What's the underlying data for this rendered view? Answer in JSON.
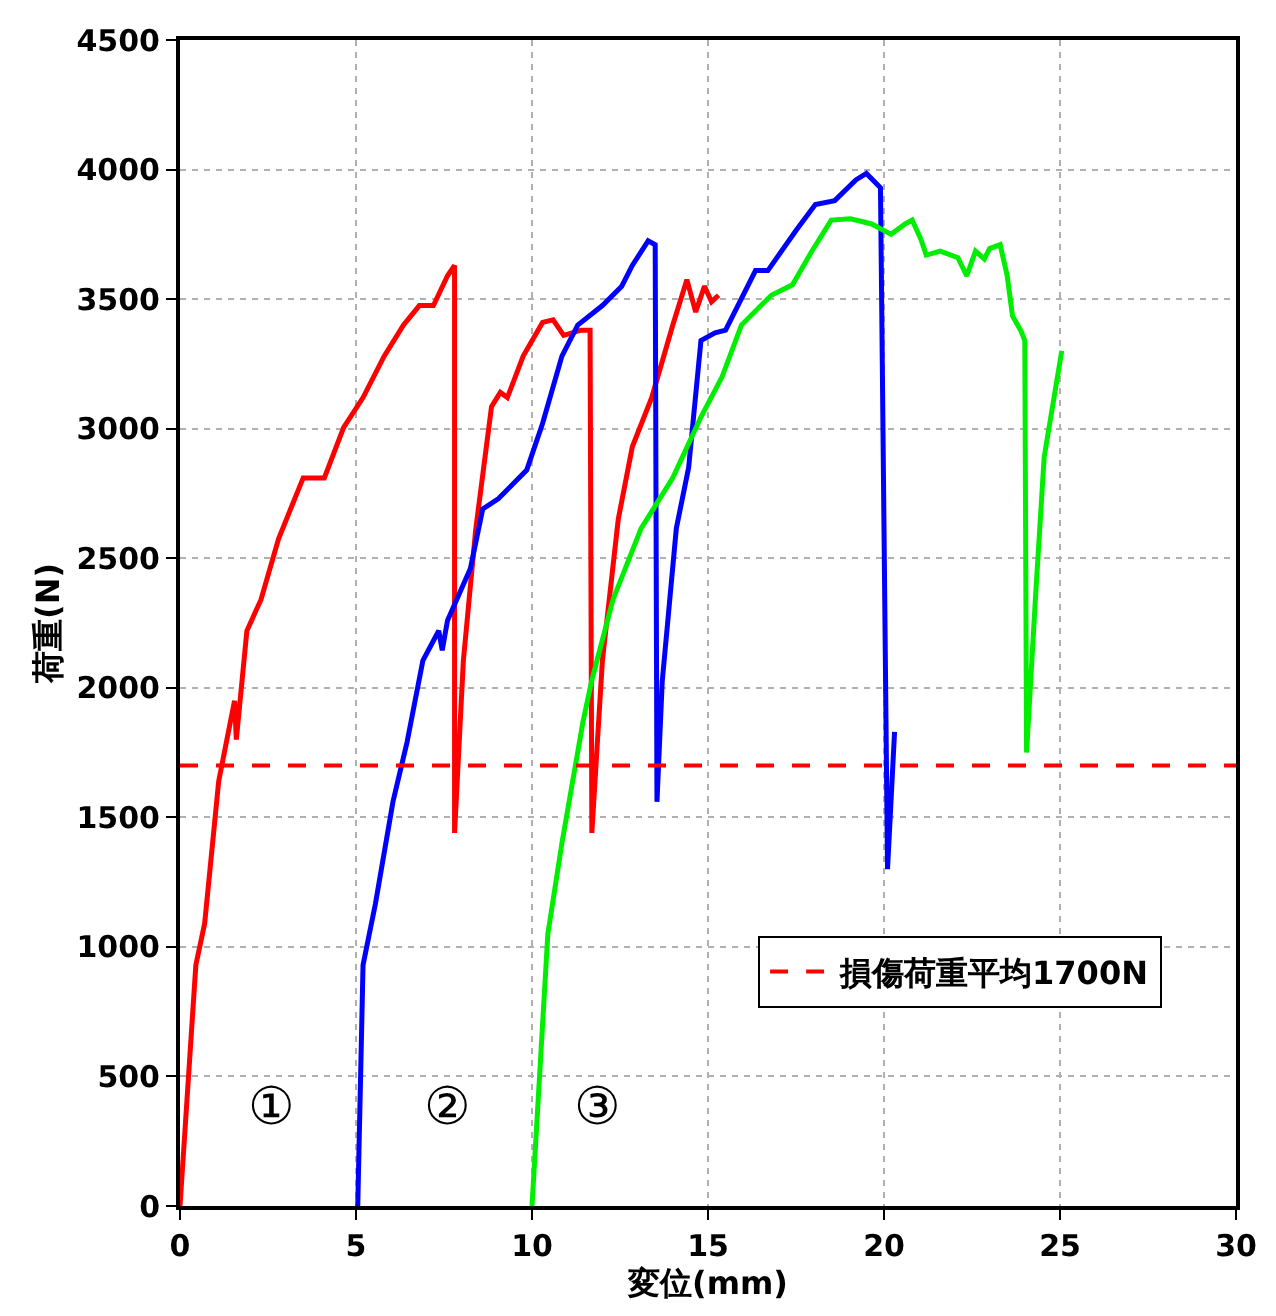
{
  "chart_data": {
    "type": "line",
    "xlabel": "変位(mm)",
    "ylabel": "荷重(N)",
    "xlim": [
      0,
      30
    ],
    "xticks": [
      0,
      5,
      10,
      15,
      20,
      25,
      30
    ],
    "ylim": [
      0,
      4500
    ],
    "yticks": [
      0,
      500,
      1000,
      1500,
      2000,
      2500,
      3000,
      3500,
      4000,
      4500
    ],
    "grid": true,
    "legend": "bottom right",
    "marker": "none",
    "line_style": "solid",
    "series": [
      {
        "color": "#ff0000",
        "x": [
          0,
          0.45,
          0.7,
          1.1,
          1.55,
          1.6,
          1.9,
          2.3,
          2.8,
          3.5,
          4.1,
          4.65,
          5.2,
          5.8,
          6.35,
          6.8,
          7.2,
          7.6,
          7.8,
          7.8,
          8.05,
          8.4,
          8.85,
          9.1,
          9.3,
          9.75,
          10.3,
          10.6,
          10.9,
          11.4,
          11.65,
          11.7,
          12.0,
          12.45,
          12.85,
          13.4,
          14.0,
          14.4,
          14.65,
          14.9,
          15.1,
          15.3
        ],
        "values": [
          0,
          930,
          1090,
          1640,
          1950,
          1800,
          2220,
          2340,
          2575,
          2810,
          2810,
          3005,
          3120,
          3280,
          3400,
          3475,
          3475,
          3590,
          3630,
          1440,
          2105,
          2610,
          3085,
          3140,
          3120,
          3280,
          3410,
          3420,
          3360,
          3380,
          3380,
          1440,
          2105,
          2650,
          2930,
          3120,
          3400,
          3575,
          3450,
          3550,
          3490,
          3515
        ]
      },
      {
        "color": "#0000ff",
        "x": [
          5.05,
          5.2,
          5.55,
          6.05,
          6.45,
          6.9,
          7.35,
          7.45,
          7.6,
          8.25,
          8.6,
          9.05,
          9.85,
          10.3,
          10.85,
          11.3,
          12.0,
          12.55,
          12.85,
          13.3,
          13.5,
          13.55,
          13.7,
          14.1,
          14.45,
          14.8,
          15.2,
          15.5,
          16.35,
          16.7,
          17.5,
          18.05,
          18.6,
          19.2,
          19.5,
          19.9,
          20.1,
          20.3
        ],
        "values": [
          0,
          930,
          1165,
          1560,
          1790,
          2105,
          2220,
          2145,
          2260,
          2460,
          2690,
          2730,
          2840,
          3020,
          3280,
          3400,
          3475,
          3550,
          3630,
          3725,
          3710,
          1560,
          2025,
          2615,
          2850,
          3340,
          3370,
          3380,
          3610,
          3610,
          3765,
          3865,
          3880,
          3960,
          3985,
          3930,
          1300,
          1830
        ]
      },
      {
        "color": "#00ee00",
        "x": [
          10.0,
          10.45,
          10.85,
          11.45,
          11.7,
          12.3,
          13.1,
          14.0,
          14.8,
          15.4,
          15.95,
          16.8,
          17.4,
          17.95,
          18.5,
          19.05,
          19.65,
          20.2,
          20.6,
          20.8,
          21.05,
          21.2,
          21.6,
          22.1,
          22.35,
          22.6,
          22.85,
          23.0,
          23.3,
          23.5,
          23.65,
          23.9,
          24.0,
          24.05,
          24.3,
          24.55,
          25.05
        ],
        "values": [
          0,
          1050,
          1400,
          1870,
          2030,
          2340,
          2615,
          2810,
          3045,
          3200,
          3400,
          3515,
          3555,
          3685,
          3805,
          3810,
          3790,
          3750,
          3790,
          3805,
          3730,
          3670,
          3685,
          3660,
          3590,
          3685,
          3655,
          3695,
          3710,
          3590,
          3435,
          3375,
          3340,
          1750,
          2340,
          2890,
          3300
        ]
      }
    ],
    "ref_lines": [
      {
        "axis": "y",
        "value": 1700,
        "label": "損傷荷重平均1700N",
        "color": "#ff0000",
        "line_style": "dashed"
      }
    ],
    "annotations": [
      "①",
      "②",
      "③"
    ]
  }
}
